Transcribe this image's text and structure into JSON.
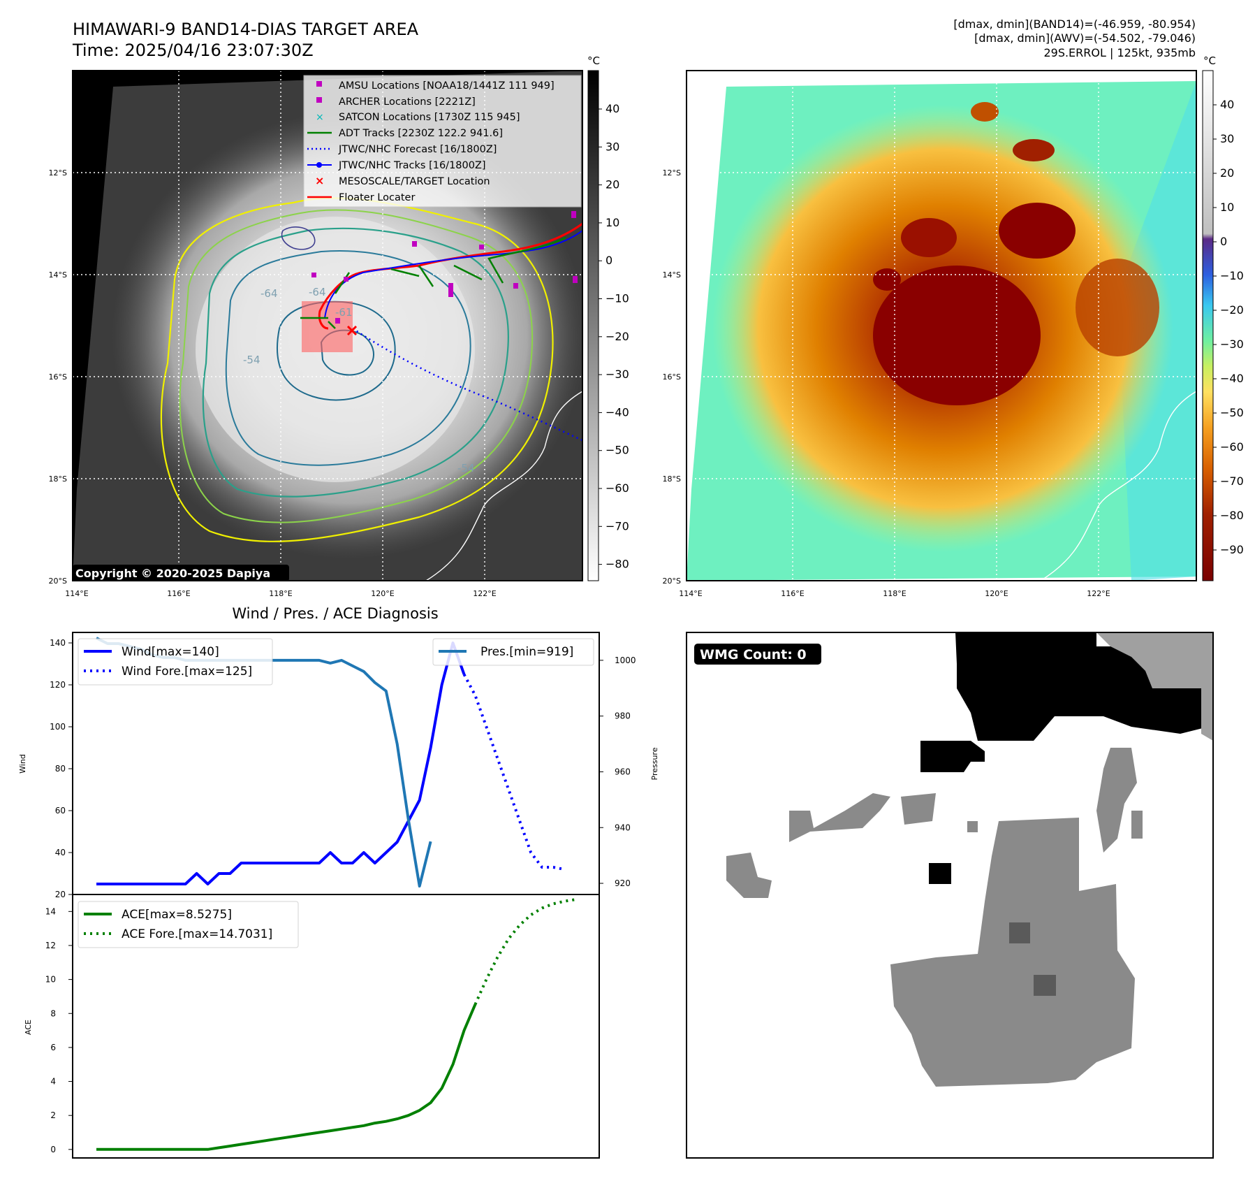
{
  "header": {
    "title_line1": "HIMAWARI-9 BAND14-DIAS TARGET AREA",
    "title_line2": "Time: 2025/04/16 23:07:30Z",
    "info_line1": "[dmax, dmin](BAND14)=(-46.959, -80.954)",
    "info_line2": "[dmax, dmin](AWV)=(-54.502, -79.046)",
    "info_line3": "29S.ERROL | 125kt, 935mb"
  },
  "map_panel": {
    "lat_labels": [
      "12°S",
      "14°S",
      "16°S",
      "18°S",
      "20°S"
    ],
    "lon_labels": [
      "114°E",
      "116°E",
      "118°E",
      "120°E",
      "122°E"
    ],
    "copyright": "Copyright © 2020-2025 Dapiya",
    "contour_labels": [
      "-64",
      "-54",
      "-64",
      "-54",
      "-64",
      "-54",
      "-61"
    ],
    "legend": [
      {
        "label": "AMSU Locations [NOAA18/1441Z 111 949]",
        "color": "#c000c0",
        "marker": "square"
      },
      {
        "label": "ARCHER Locations [2221Z]",
        "color": "#c000c0",
        "marker": "square"
      },
      {
        "label": "SATCON Locations [1730Z 115 945]",
        "color": "#00b8b8",
        "marker": "x"
      },
      {
        "label": "ADT Tracks [2230Z 122.2 941.6]",
        "color": "#008000",
        "marker": "line"
      },
      {
        "label": "JTWC/NHC Forecast [16/1800Z]",
        "color": "#0000ff",
        "marker": "dotted"
      },
      {
        "label": "JTWC/NHC Tracks [16/1800Z]",
        "color": "#0000ff",
        "marker": "line-dot"
      },
      {
        "label": "MESOSCALE/TARGET Location",
        "color": "#ff0000",
        "marker": "x"
      },
      {
        "label": "Floater Locater",
        "color": "#ff0000",
        "marker": "line"
      }
    ]
  },
  "colorbar_gray": {
    "unit": "°C",
    "ticks": [
      "40",
      "30",
      "20",
      "10",
      "0",
      "−10",
      "−20",
      "−30",
      "−40",
      "−50",
      "−60",
      "−70",
      "−80"
    ]
  },
  "colorbar_color": {
    "unit": "°C",
    "ticks": [
      "40",
      "30",
      "20",
      "10",
      "0",
      "−10",
      "−20",
      "−30",
      "−40",
      "−50",
      "−60",
      "−70",
      "−80",
      "−90"
    ]
  },
  "wmg_panel": {
    "label": "WMG Count: 0"
  },
  "chart_data": [
    {
      "type": "line",
      "title": "Wind / Pres. / ACE Diagnosis",
      "ylabel": "Wind",
      "ylabel_right": "Pressure",
      "ylim": [
        20,
        145
      ],
      "ylim_right": [
        916,
        1010
      ],
      "yticks": [
        "140",
        "120",
        "100",
        "80",
        "60",
        "40",
        "20"
      ],
      "yticks_right": [
        "1000",
        "980",
        "960",
        "940",
        "920"
      ],
      "series": [
        {
          "name": "Wind[max=140]",
          "color": "#0000ff",
          "style": "solid",
          "values": [
            25,
            25,
            25,
            25,
            25,
            25,
            25,
            25,
            25,
            30,
            25,
            30,
            30,
            35,
            35,
            35,
            35,
            35,
            35,
            35,
            35,
            40,
            35,
            35,
            40,
            35,
            40,
            45,
            55,
            65,
            90,
            120,
            140,
            125
          ]
        },
        {
          "name": "Wind Fore.[max=125]",
          "color": "#0000ff",
          "style": "dotted",
          "values": [
            125,
            115,
            100,
            85,
            70,
            55,
            40,
            33,
            33,
            32
          ]
        },
        {
          "name": "Pres.[min=919]",
          "color": "#1f77b4",
          "style": "solid",
          "axis": "right",
          "values": [
            1008,
            1006,
            1006,
            1005,
            1004,
            1002,
            1001,
            1001,
            1000,
            1000,
            1000,
            1000,
            1000,
            1000,
            1000,
            1000,
            1000,
            1000,
            1000,
            1000,
            1000,
            999,
            1000,
            998,
            996,
            992,
            989,
            970,
            943,
            919,
            935
          ]
        }
      ]
    },
    {
      "type": "line",
      "ylabel": "ACE",
      "ylim": [
        -0.5,
        15
      ],
      "yticks": [
        "14",
        "12",
        "10",
        "8",
        "6",
        "4",
        "2",
        "0"
      ],
      "series": [
        {
          "name": "ACE[max=8.5275]",
          "color": "#008000",
          "style": "solid",
          "values": [
            0,
            0,
            0,
            0,
            0,
            0,
            0,
            0,
            0,
            0,
            0,
            0.1,
            0.2,
            0.3,
            0.4,
            0.5,
            0.6,
            0.7,
            0.8,
            0.9,
            1.0,
            1.1,
            1.2,
            1.3,
            1.4,
            1.55,
            1.65,
            1.8,
            2.0,
            2.3,
            2.75,
            3.6,
            5.0,
            7.0,
            8.5275
          ]
        },
        {
          "name": "ACE Fore.[max=14.7031]",
          "color": "#008000",
          "style": "dotted",
          "values": [
            8.5275,
            10.0,
            11.3,
            12.4,
            13.2,
            13.8,
            14.2,
            14.45,
            14.6,
            14.7031
          ]
        }
      ]
    }
  ]
}
